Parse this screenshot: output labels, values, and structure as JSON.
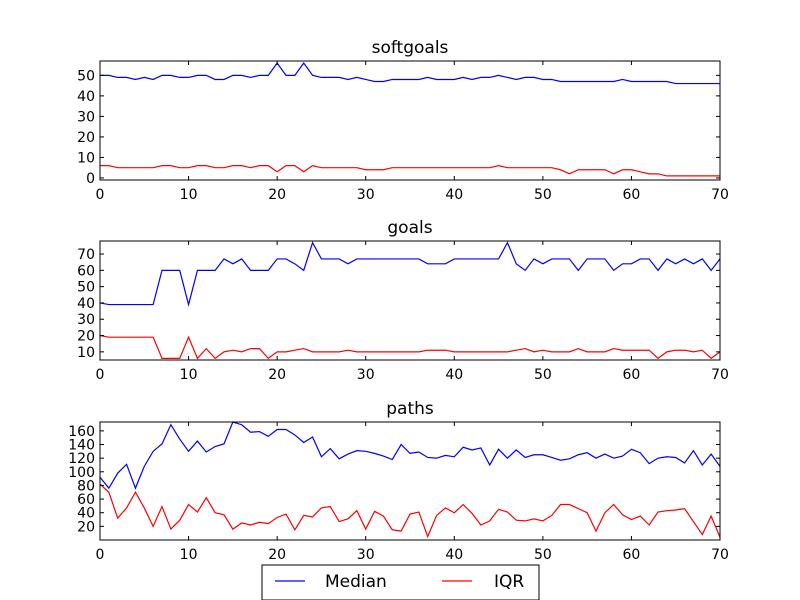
{
  "chart_data": [
    {
      "type": "line",
      "title": "softgoals",
      "xlim": [
        0,
        70
      ],
      "ylim": [
        -1,
        57
      ],
      "xticks": [
        0,
        10,
        20,
        30,
        40,
        50,
        60,
        70
      ],
      "yticks": [
        0,
        10,
        20,
        30,
        40,
        50
      ],
      "grid": false,
      "series": [
        {
          "name": "Median",
          "color": "#0000ff",
          "x": [
            0,
            1,
            2,
            3,
            4,
            5,
            6,
            7,
            8,
            9,
            10,
            11,
            12,
            13,
            14,
            15,
            16,
            17,
            18,
            19,
            20,
            21,
            22,
            23,
            24,
            25,
            26,
            27,
            28,
            29,
            30,
            31,
            32,
            33,
            34,
            35,
            36,
            37,
            38,
            39,
            40,
            41,
            42,
            43,
            44,
            45,
            46,
            47,
            48,
            49,
            50,
            51,
            52,
            53,
            54,
            55,
            56,
            57,
            58,
            59,
            60,
            61,
            62,
            63,
            64,
            65,
            66,
            67,
            68,
            69,
            70
          ],
          "values": [
            50,
            50,
            49,
            49,
            48,
            49,
            48,
            50,
            50,
            49,
            49,
            50,
            50,
            48,
            48,
            50,
            50,
            49,
            50,
            50,
            56,
            50,
            50,
            56,
            50,
            49,
            49,
            49,
            48,
            49,
            48,
            47,
            47,
            48,
            48,
            48,
            48,
            49,
            48,
            48,
            48,
            49,
            48,
            49,
            49,
            50,
            49,
            48,
            49,
            49,
            48,
            48,
            47,
            47,
            47,
            47,
            47,
            47,
            47,
            48,
            47,
            47,
            47,
            47,
            47,
            46,
            46,
            46,
            46,
            46,
            46
          ]
        },
        {
          "name": "IQR",
          "color": "#ff0000",
          "x": [
            0,
            1,
            2,
            3,
            4,
            5,
            6,
            7,
            8,
            9,
            10,
            11,
            12,
            13,
            14,
            15,
            16,
            17,
            18,
            19,
            20,
            21,
            22,
            23,
            24,
            25,
            26,
            27,
            28,
            29,
            30,
            31,
            32,
            33,
            34,
            35,
            36,
            37,
            38,
            39,
            40,
            41,
            42,
            43,
            44,
            45,
            46,
            47,
            48,
            49,
            50,
            51,
            52,
            53,
            54,
            55,
            56,
            57,
            58,
            59,
            60,
            61,
            62,
            63,
            64,
            65,
            66,
            67,
            68,
            69,
            70
          ],
          "values": [
            6,
            6,
            5,
            5,
            5,
            5,
            5,
            6,
            6,
            5,
            5,
            6,
            6,
            5,
            5,
            6,
            6,
            5,
            6,
            6,
            3,
            6,
            6,
            3,
            6,
            5,
            5,
            5,
            5,
            5,
            4,
            4,
            4,
            5,
            5,
            5,
            5,
            5,
            5,
            5,
            5,
            5,
            5,
            5,
            5,
            6,
            5,
            5,
            5,
            5,
            5,
            5,
            4,
            2,
            4,
            4,
            4,
            4,
            2,
            4,
            4,
            3,
            2,
            2,
            1,
            1,
            1,
            1,
            1,
            1,
            1
          ]
        }
      ]
    },
    {
      "type": "line",
      "title": "goals",
      "xlim": [
        0,
        70
      ],
      "ylim": [
        5,
        78
      ],
      "xticks": [
        0,
        10,
        20,
        30,
        40,
        50,
        60,
        70
      ],
      "yticks": [
        10,
        20,
        30,
        40,
        50,
        60,
        70
      ],
      "grid": false,
      "series": [
        {
          "name": "Median",
          "color": "#0000ff",
          "x": [
            0,
            1,
            2,
            3,
            4,
            5,
            6,
            7,
            8,
            9,
            10,
            11,
            12,
            13,
            14,
            15,
            16,
            17,
            18,
            19,
            20,
            21,
            22,
            23,
            24,
            25,
            26,
            27,
            28,
            29,
            30,
            31,
            32,
            33,
            34,
            35,
            36,
            37,
            38,
            39,
            40,
            41,
            42,
            43,
            44,
            45,
            46,
            47,
            48,
            49,
            50,
            51,
            52,
            53,
            54,
            55,
            56,
            57,
            58,
            59,
            60,
            61,
            62,
            63,
            64,
            65,
            66,
            67,
            68,
            69,
            70
          ],
          "values": [
            40,
            39,
            39,
            39,
            39,
            39,
            39,
            60,
            60,
            60,
            39,
            60,
            60,
            60,
            67,
            64,
            67,
            60,
            60,
            60,
            67,
            67,
            64,
            60,
            77,
            67,
            67,
            67,
            64,
            67,
            67,
            67,
            67,
            67,
            67,
            67,
            67,
            64,
            64,
            64,
            67,
            67,
            67,
            67,
            67,
            67,
            77,
            64,
            60,
            67,
            64,
            67,
            67,
            67,
            60,
            67,
            67,
            67,
            60,
            64,
            64,
            67,
            67,
            60,
            67,
            64,
            67,
            64,
            67,
            60,
            67
          ]
        },
        {
          "name": "IQR",
          "color": "#ff0000",
          "x": [
            0,
            1,
            2,
            3,
            4,
            5,
            6,
            7,
            8,
            9,
            10,
            11,
            12,
            13,
            14,
            15,
            16,
            17,
            18,
            19,
            20,
            21,
            22,
            23,
            24,
            25,
            26,
            27,
            28,
            29,
            30,
            31,
            32,
            33,
            34,
            35,
            36,
            37,
            38,
            39,
            40,
            41,
            42,
            43,
            44,
            45,
            46,
            47,
            48,
            49,
            50,
            51,
            52,
            53,
            54,
            55,
            56,
            57,
            58,
            59,
            60,
            61,
            62,
            63,
            64,
            65,
            66,
            67,
            68,
            69,
            70
          ],
          "values": [
            20,
            19,
            19,
            19,
            19,
            19,
            19,
            6,
            6,
            6,
            19,
            6,
            12,
            6,
            10,
            11,
            10,
            12,
            12,
            6,
            10,
            10,
            11,
            12,
            10,
            10,
            10,
            10,
            11,
            10,
            10,
            10,
            10,
            10,
            10,
            10,
            10,
            11,
            11,
            11,
            10,
            10,
            10,
            10,
            10,
            10,
            10,
            11,
            12,
            10,
            11,
            10,
            10,
            10,
            12,
            10,
            10,
            10,
            12,
            11,
            11,
            11,
            11,
            6,
            10,
            11,
            11,
            10,
            11,
            6,
            10
          ]
        }
      ]
    },
    {
      "type": "line",
      "title": "paths",
      "xlim": [
        0,
        70
      ],
      "ylim": [
        0,
        173
      ],
      "xticks": [
        0,
        10,
        20,
        30,
        40,
        50,
        60,
        70
      ],
      "yticks": [
        20,
        40,
        60,
        80,
        100,
        120,
        140,
        160
      ],
      "grid": false,
      "series": [
        {
          "name": "Median",
          "color": "#0000ff",
          "x": [
            0,
            1,
            2,
            3,
            4,
            5,
            6,
            7,
            8,
            9,
            10,
            11,
            12,
            13,
            14,
            15,
            16,
            17,
            18,
            19,
            20,
            21,
            22,
            23,
            24,
            25,
            26,
            27,
            28,
            29,
            30,
            31,
            32,
            33,
            34,
            35,
            36,
            37,
            38,
            39,
            40,
            41,
            42,
            43,
            44,
            45,
            46,
            47,
            48,
            49,
            50,
            51,
            52,
            53,
            54,
            55,
            56,
            57,
            58,
            59,
            60,
            61,
            62,
            63,
            64,
            65,
            66,
            67,
            68,
            69,
            70
          ],
          "values": [
            92,
            76,
            98,
            111,
            76,
            108,
            130,
            141,
            169,
            148,
            130,
            145,
            129,
            137,
            141,
            173,
            169,
            158,
            159,
            152,
            162,
            162,
            154,
            143,
            151,
            122,
            134,
            119,
            126,
            131,
            130,
            127,
            123,
            118,
            140,
            127,
            129,
            121,
            120,
            124,
            122,
            136,
            132,
            135,
            110,
            133,
            120,
            132,
            121,
            125,
            125,
            121,
            117,
            119,
            125,
            128,
            120,
            126,
            120,
            123,
            133,
            128,
            112,
            120,
            122,
            121,
            113,
            131,
            110,
            126,
            108
          ]
        },
        {
          "name": "IQR",
          "color": "#ff0000",
          "x": [
            0,
            1,
            2,
            3,
            4,
            5,
            6,
            7,
            8,
            9,
            10,
            11,
            12,
            13,
            14,
            15,
            16,
            17,
            18,
            19,
            20,
            21,
            22,
            23,
            24,
            25,
            26,
            27,
            28,
            29,
            30,
            31,
            32,
            33,
            34,
            35,
            36,
            37,
            38,
            39,
            40,
            41,
            42,
            43,
            44,
            45,
            46,
            47,
            48,
            49,
            50,
            51,
            52,
            53,
            54,
            55,
            56,
            57,
            58,
            59,
            60,
            61,
            62,
            63,
            64,
            65,
            66,
            67,
            68,
            69,
            70
          ],
          "values": [
            82,
            70,
            32,
            47,
            70,
            47,
            20,
            49,
            16,
            29,
            52,
            41,
            62,
            40,
            37,
            16,
            25,
            22,
            26,
            24,
            33,
            38,
            15,
            36,
            34,
            47,
            49,
            27,
            31,
            43,
            16,
            42,
            35,
            15,
            13,
            38,
            41,
            5,
            36,
            47,
            40,
            52,
            39,
            22,
            28,
            45,
            41,
            29,
            28,
            31,
            28,
            36,
            52,
            52,
            46,
            40,
            13,
            40,
            52,
            37,
            30,
            35,
            22,
            41,
            43,
            44,
            46,
            27,
            8,
            35,
            4
          ]
        }
      ]
    }
  ],
  "legend": {
    "placement": "bottom-center",
    "entries": [
      {
        "label": "Median",
        "color": "#0000ff"
      },
      {
        "label": "IQR",
        "color": "#ff0000"
      }
    ]
  }
}
